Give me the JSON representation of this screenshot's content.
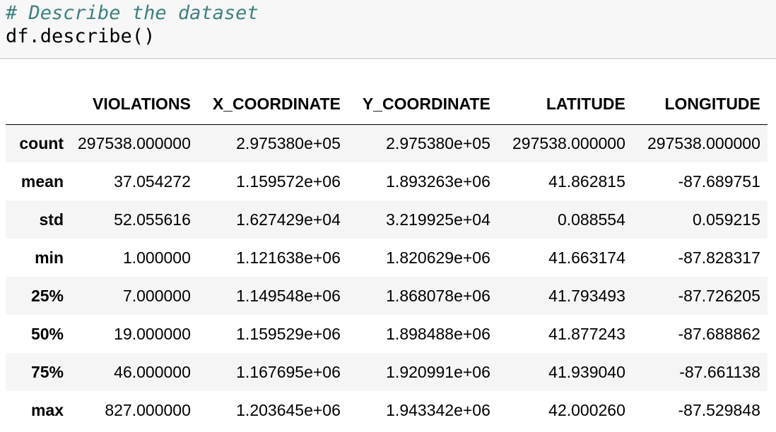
{
  "code": {
    "comment": "# Describe the dataset",
    "call": "df.describe()"
  },
  "table": {
    "columns": [
      "VIOLATIONS",
      "X_COORDINATE",
      "Y_COORDINATE",
      "LATITUDE",
      "LONGITUDE"
    ],
    "rows": [
      {
        "index": "count",
        "values": [
          "297538.000000",
          "2.975380e+05",
          "2.975380e+05",
          "297538.000000",
          "297538.000000"
        ]
      },
      {
        "index": "mean",
        "values": [
          "37.054272",
          "1.159572e+06",
          "1.893263e+06",
          "41.862815",
          "-87.689751"
        ]
      },
      {
        "index": "std",
        "values": [
          "52.055616",
          "1.627429e+04",
          "3.219925e+04",
          "0.088554",
          "0.059215"
        ]
      },
      {
        "index": "min",
        "values": [
          "1.000000",
          "1.121638e+06",
          "1.820629e+06",
          "41.663174",
          "-87.828317"
        ]
      },
      {
        "index": "25%",
        "values": [
          "7.000000",
          "1.149548e+06",
          "1.868078e+06",
          "41.793493",
          "-87.726205"
        ]
      },
      {
        "index": "50%",
        "values": [
          "19.000000",
          "1.159529e+06",
          "1.898488e+06",
          "41.877243",
          "-87.688862"
        ]
      },
      {
        "index": "75%",
        "values": [
          "46.000000",
          "1.167695e+06",
          "1.920991e+06",
          "41.939040",
          "-87.661138"
        ]
      },
      {
        "index": "max",
        "values": [
          "827.000000",
          "1.203645e+06",
          "1.943342e+06",
          "42.000260",
          "-87.529848"
        ]
      }
    ]
  }
}
